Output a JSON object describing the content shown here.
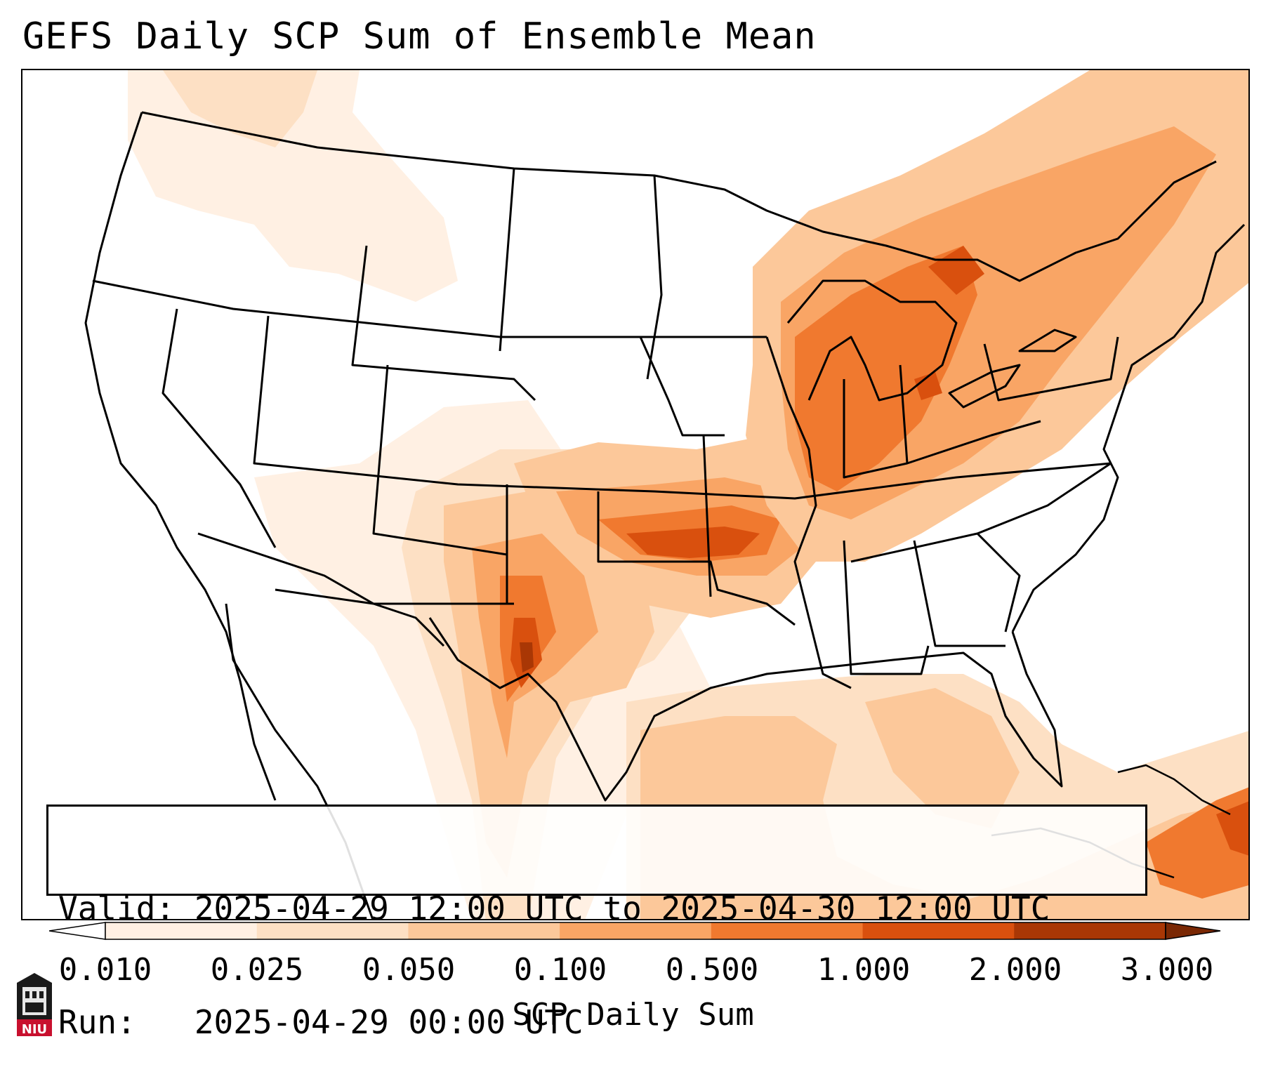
{
  "title": "GEFS Daily SCP Sum of Ensemble Mean",
  "info": {
    "valid": "Valid: 2025-04-29 12:00 UTC to 2025-04-30 12:00 UTC",
    "run": "Run:   2025-04-29 00:00 UTC"
  },
  "colorbar": {
    "label": "SCP Daily Sum",
    "ticks": [
      "0.010",
      "0.025",
      "0.050",
      "0.100",
      "0.500",
      "1.000",
      "2.000",
      "3.000"
    ],
    "colors": [
      "#fff0e3",
      "#fde0c4",
      "#fcc89a",
      "#f9a565",
      "#f0792f",
      "#d9500e",
      "#a93705"
    ]
  },
  "logo": {
    "text": "NIU"
  }
}
